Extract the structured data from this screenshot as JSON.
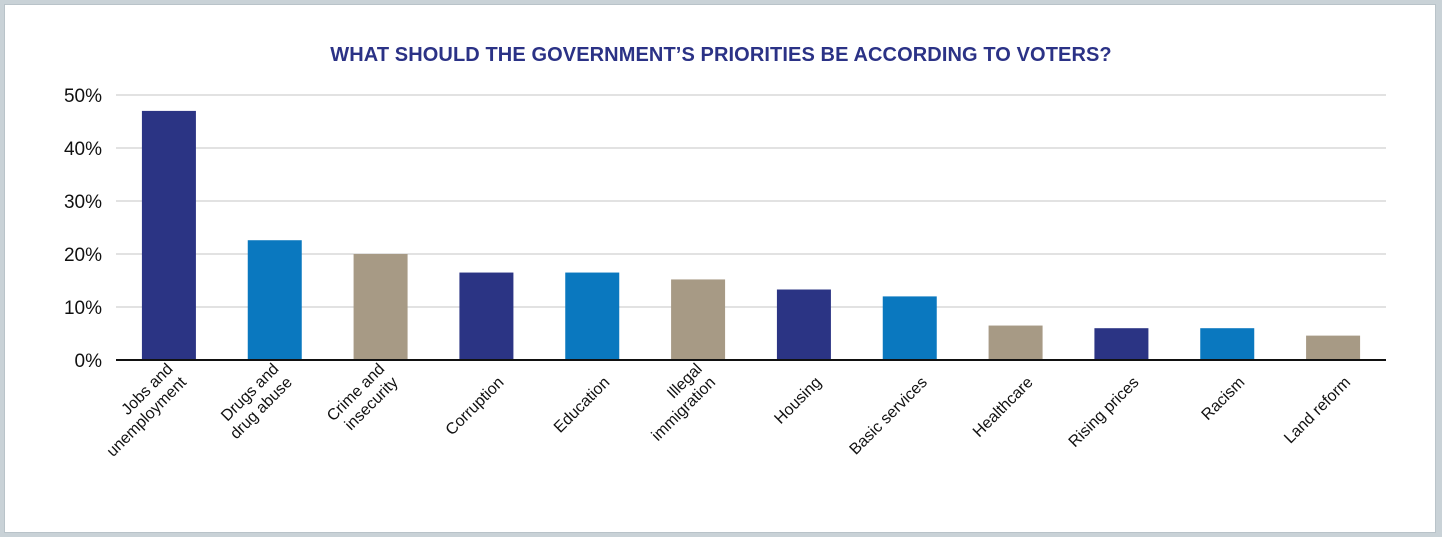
{
  "chart_data": {
    "type": "bar",
    "title": "WHAT SHOULD THE GOVERNMENT’S PRIORITIES BE ACCORDING TO VOTERS?",
    "xlabel": "",
    "ylabel": "",
    "categories": [
      [
        "Jobs and",
        "unemployment"
      ],
      [
        "Drugs and",
        "drug abuse"
      ],
      [
        "Crime and",
        "insecurity"
      ],
      [
        "Corruption"
      ],
      [
        "Education"
      ],
      [
        "Illegal",
        "immigration"
      ],
      [
        "Housing"
      ],
      [
        "Basic services"
      ],
      [
        "Healthcare"
      ],
      [
        "Rising prices"
      ],
      [
        "Racism"
      ],
      [
        "Land reform"
      ]
    ],
    "values": [
      47,
      22.6,
      20,
      16.5,
      16.5,
      15.2,
      13.3,
      12,
      6.5,
      6,
      6,
      4.6
    ],
    "colors": [
      "#2b3484",
      "#0a78bf",
      "#a79a85",
      "#2b3484",
      "#0a78bf",
      "#a79a85",
      "#2b3484",
      "#0a78bf",
      "#a79a85",
      "#2b3484",
      "#0a78bf",
      "#a79a85"
    ],
    "ylim": [
      0,
      50
    ],
    "yticks": [
      0,
      10,
      20,
      30,
      40,
      50
    ],
    "ytick_labels": [
      "0%",
      "10%",
      "20%",
      "30%",
      "40%",
      "50%"
    ],
    "grid": true,
    "legend": "none"
  }
}
